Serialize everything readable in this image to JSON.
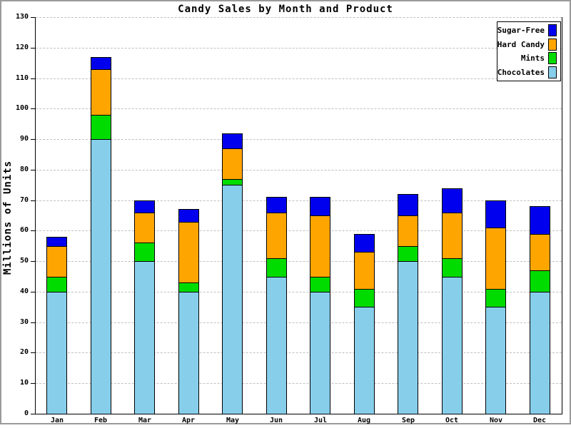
{
  "chart_data": {
    "type": "bar",
    "stacked": true,
    "title": "Candy Sales by Month and Product",
    "xlabel": "",
    "ylabel": "Millions of Units",
    "ylim": [
      0,
      130
    ],
    "ytick_step": 10,
    "yticks": [
      0,
      10,
      20,
      30,
      40,
      50,
      60,
      70,
      80,
      90,
      100,
      110,
      120,
      130
    ],
    "grid": "horizontal-dashed",
    "legend_position": "top-right",
    "legend_order_top_to_bottom": [
      "Sugar-Free",
      "Hard Candy",
      "Mints",
      "Chocolates"
    ],
    "categories": [
      "Jan",
      "Feb",
      "Mar",
      "Apr",
      "May",
      "Jun",
      "Jul",
      "Aug",
      "Sep",
      "Oct",
      "Nov",
      "Dec"
    ],
    "series": [
      {
        "name": "Chocolates",
        "color": "#87CEEB",
        "values": [
          40,
          90,
          50,
          40,
          75,
          45,
          40,
          35,
          50,
          45,
          35,
          40
        ]
      },
      {
        "name": "Mints",
        "color": "#00DC00",
        "values": [
          5,
          8,
          6,
          3,
          2,
          6,
          5,
          6,
          5,
          6,
          6,
          7
        ]
      },
      {
        "name": "Hard Candy",
        "color": "#FFA500",
        "values": [
          10,
          15,
          10,
          20,
          10,
          15,
          20,
          12,
          10,
          15,
          20,
          12
        ]
      },
      {
        "name": "Sugar-Free",
        "color": "#0000EE",
        "values": [
          3,
          4,
          4,
          4,
          5,
          5,
          6,
          6,
          7,
          8,
          9,
          9
        ]
      }
    ],
    "totals": [
      58,
      117,
      70,
      67,
      92,
      71,
      71,
      59,
      72,
      74,
      70,
      68
    ]
  },
  "colors": {
    "axis": "#000000",
    "gridline": "#c0c0c0",
    "frame_border": "#9a9a9a",
    "background": "#ffffff"
  }
}
